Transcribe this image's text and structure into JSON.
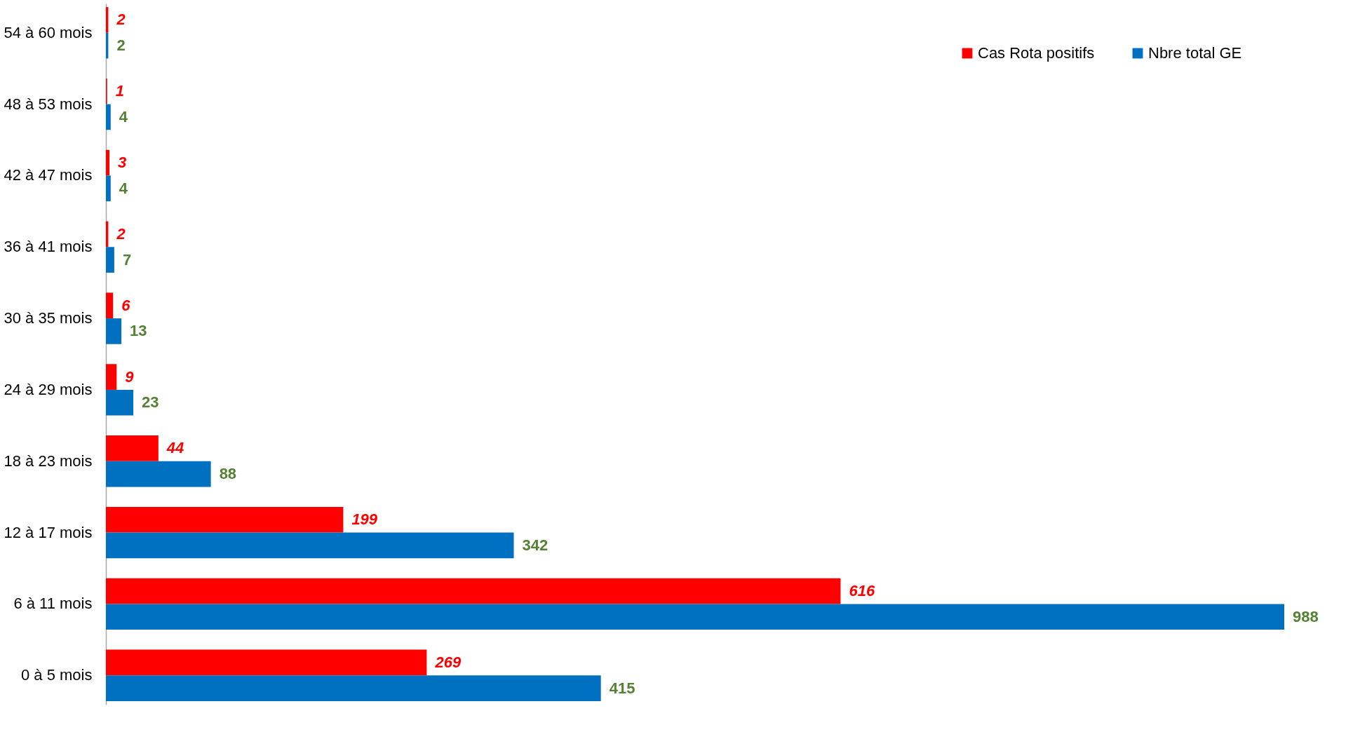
{
  "chart_data": {
    "type": "bar",
    "orientation": "horizontal",
    "categories": [
      "54 à 60 mois",
      "48 à 53 mois",
      "42 à 47 mois",
      "36 à 41 mois",
      "30 à 35 mois",
      "24 à 29 mois",
      "18 à 23 mois",
      "12 à 17 mois",
      "6 à 11 mois",
      "0 à 5 mois"
    ],
    "series": [
      {
        "name": "Cas Rota positifs",
        "color": "#ff0000",
        "values": [
          2,
          1,
          3,
          2,
          6,
          9,
          44,
          199,
          616,
          269
        ]
      },
      {
        "name": "Nbre total GE",
        "color": "#0070c0",
        "values": [
          2,
          4,
          4,
          7,
          13,
          23,
          88,
          342,
          988,
          415
        ]
      }
    ],
    "data_labels": true,
    "legend": "top right",
    "grid": false
  }
}
